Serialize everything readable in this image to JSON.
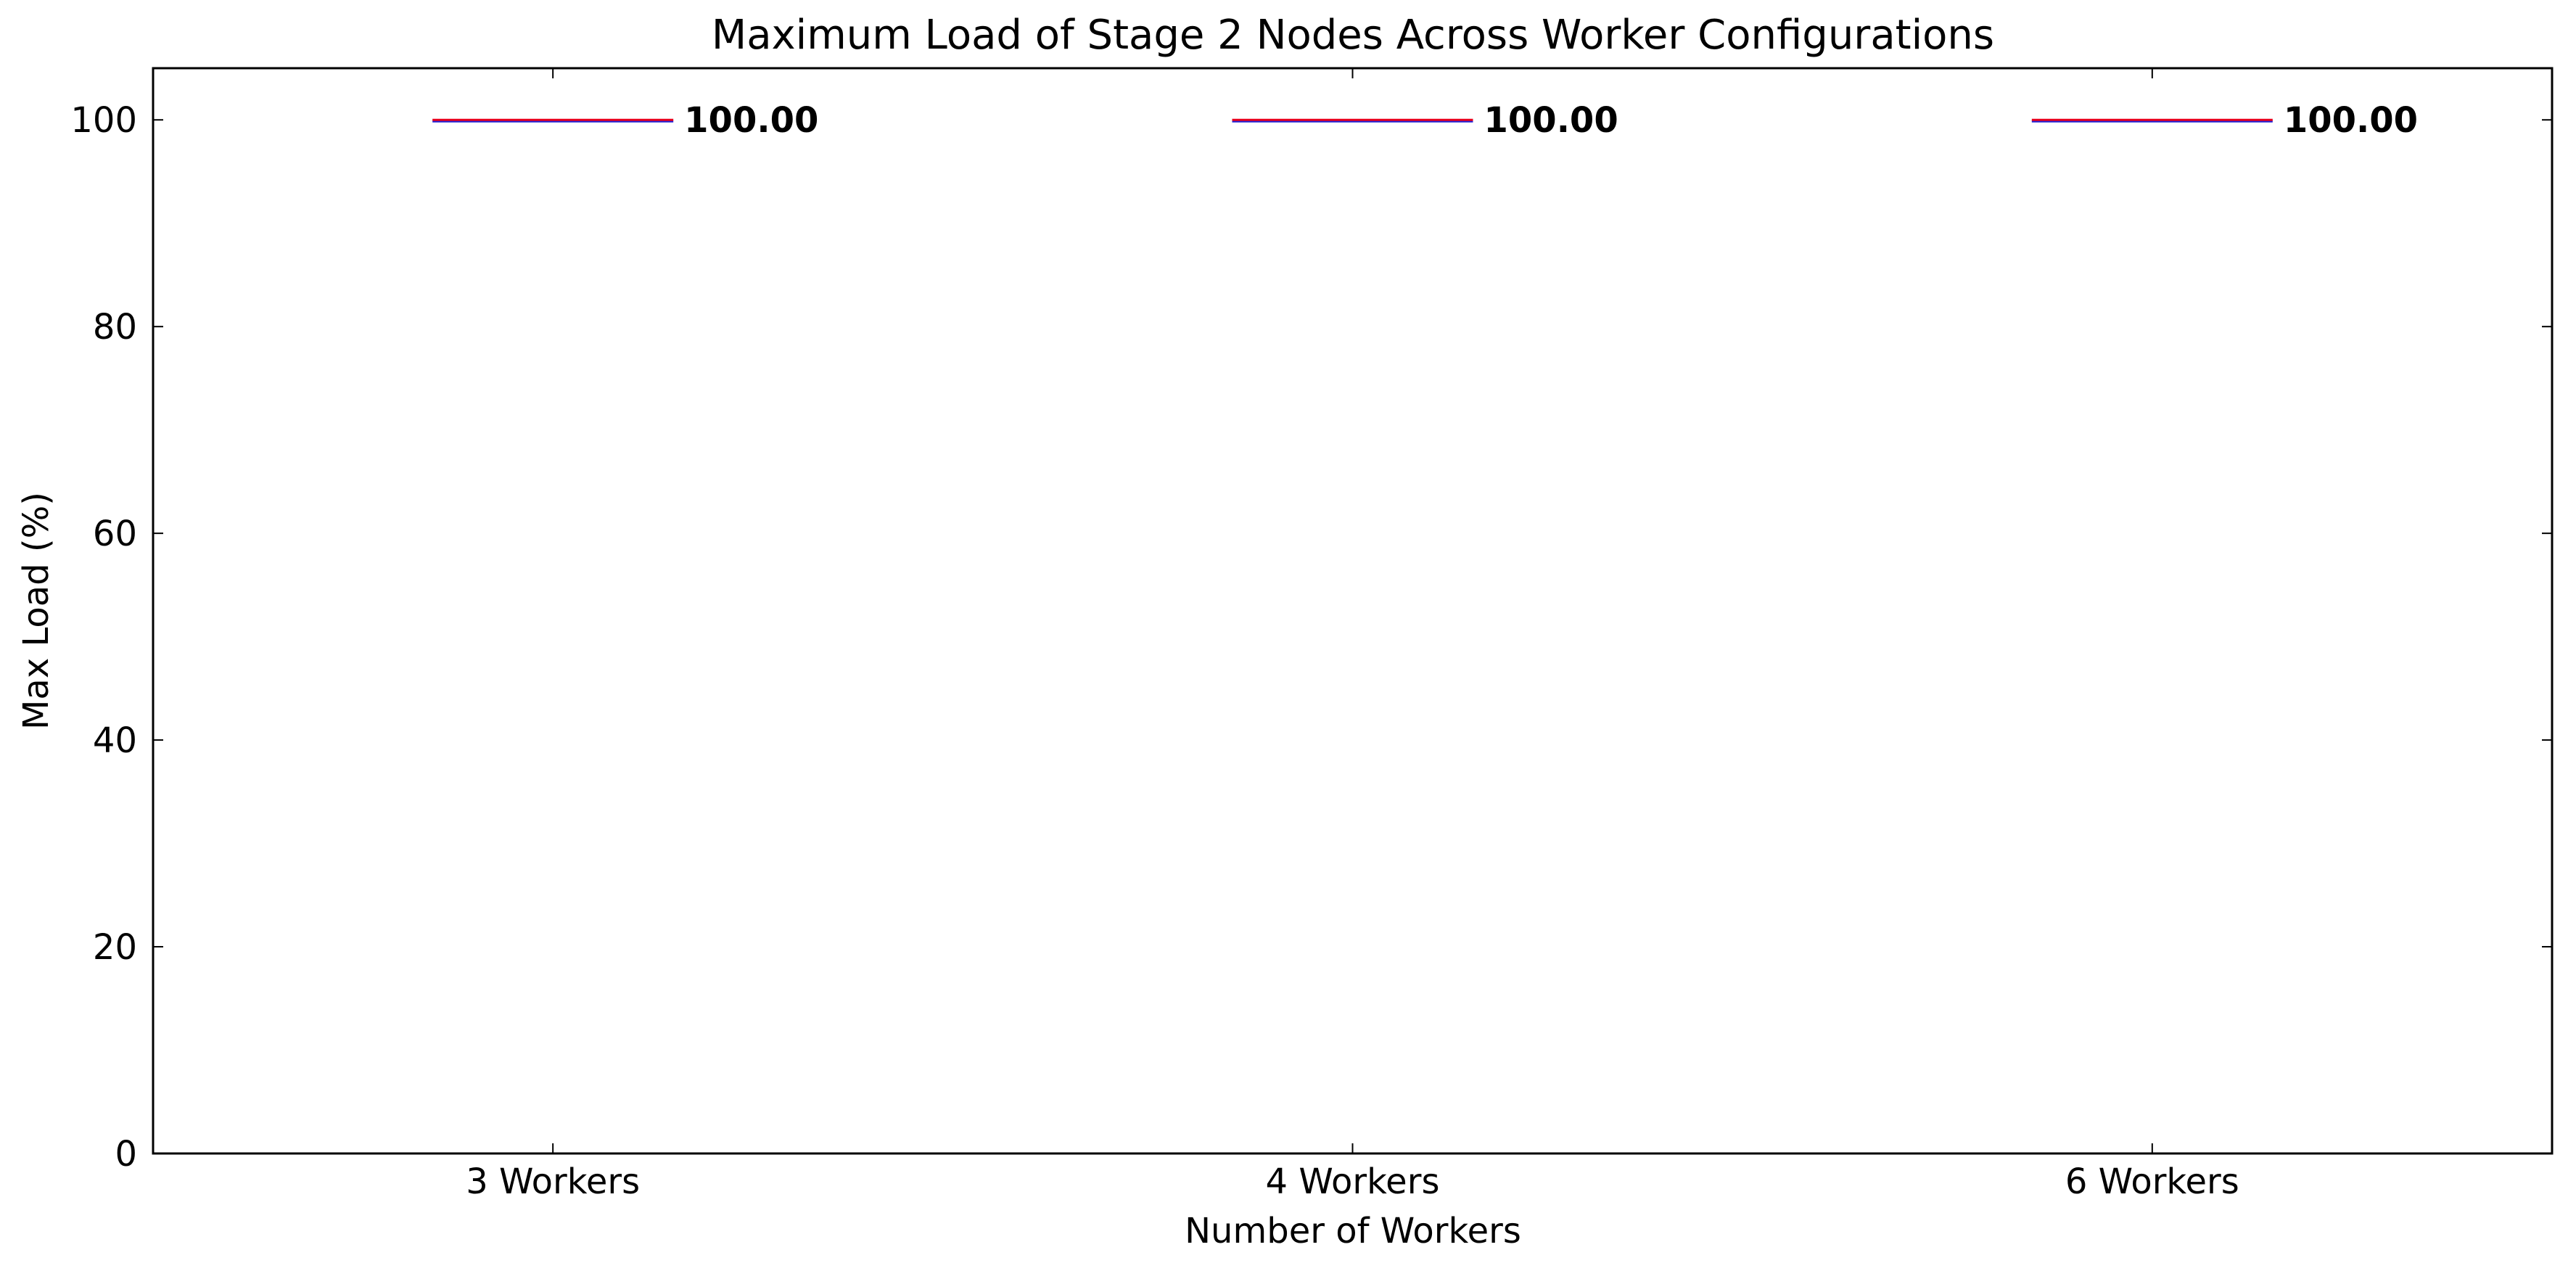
{
  "chart_data": {
    "type": "box",
    "title": "Maximum Load of Stage 2 Nodes Across Worker Configurations",
    "xlabel": "Number of Workers",
    "ylabel": "Max Load (%)",
    "categories": [
      "3 Workers",
      "4 Workers",
      "6 Workers"
    ],
    "values": [
      100.0,
      100.0,
      100.0
    ],
    "value_labels": [
      "100.00",
      "100.00",
      "100.00"
    ],
    "yticks": [
      0,
      20,
      40,
      60,
      80,
      100
    ],
    "ylim": [
      0,
      105
    ],
    "grid": false,
    "colors": {
      "median": "#e8001c",
      "box": "#1f1fd6",
      "axis": "#000000"
    }
  }
}
